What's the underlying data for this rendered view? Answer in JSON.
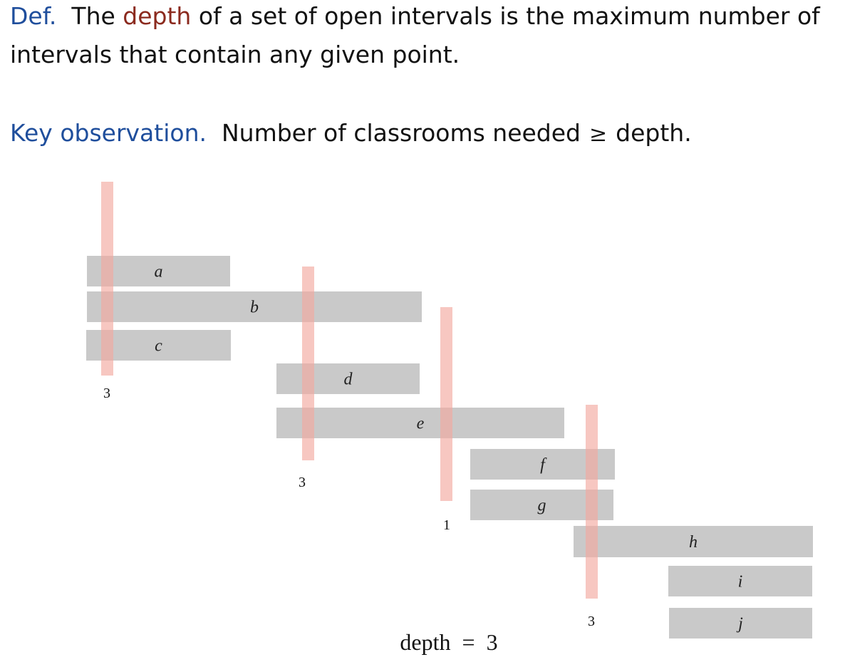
{
  "definition": {
    "prefix": "Def.",
    "pre": "The",
    "term": "depth",
    "rest_line1": "of a set of open intervals is the maximum number of",
    "line2": "intervals that contain any given point."
  },
  "observation": {
    "prefix": "Key observation.",
    "text_before": "Number of classrooms needed",
    "relation": "≥",
    "text_after": "depth."
  },
  "intervals": [
    {
      "label": "a"
    },
    {
      "label": "b"
    },
    {
      "label": "c"
    },
    {
      "label": "d"
    },
    {
      "label": "e"
    },
    {
      "label": "f"
    },
    {
      "label": "g"
    },
    {
      "label": "h"
    },
    {
      "label": "i"
    },
    {
      "label": "j"
    }
  ],
  "probes": [
    {
      "count": "3"
    },
    {
      "count": "3"
    },
    {
      "count": "1"
    },
    {
      "count": "3"
    }
  ],
  "depth_caption": "depth  =  3",
  "colors": {
    "interval": "#c9c9c9",
    "probe": "#f2a9a0",
    "accent_blue": "#1f4e9c",
    "accent_red": "#8b2a1e"
  }
}
